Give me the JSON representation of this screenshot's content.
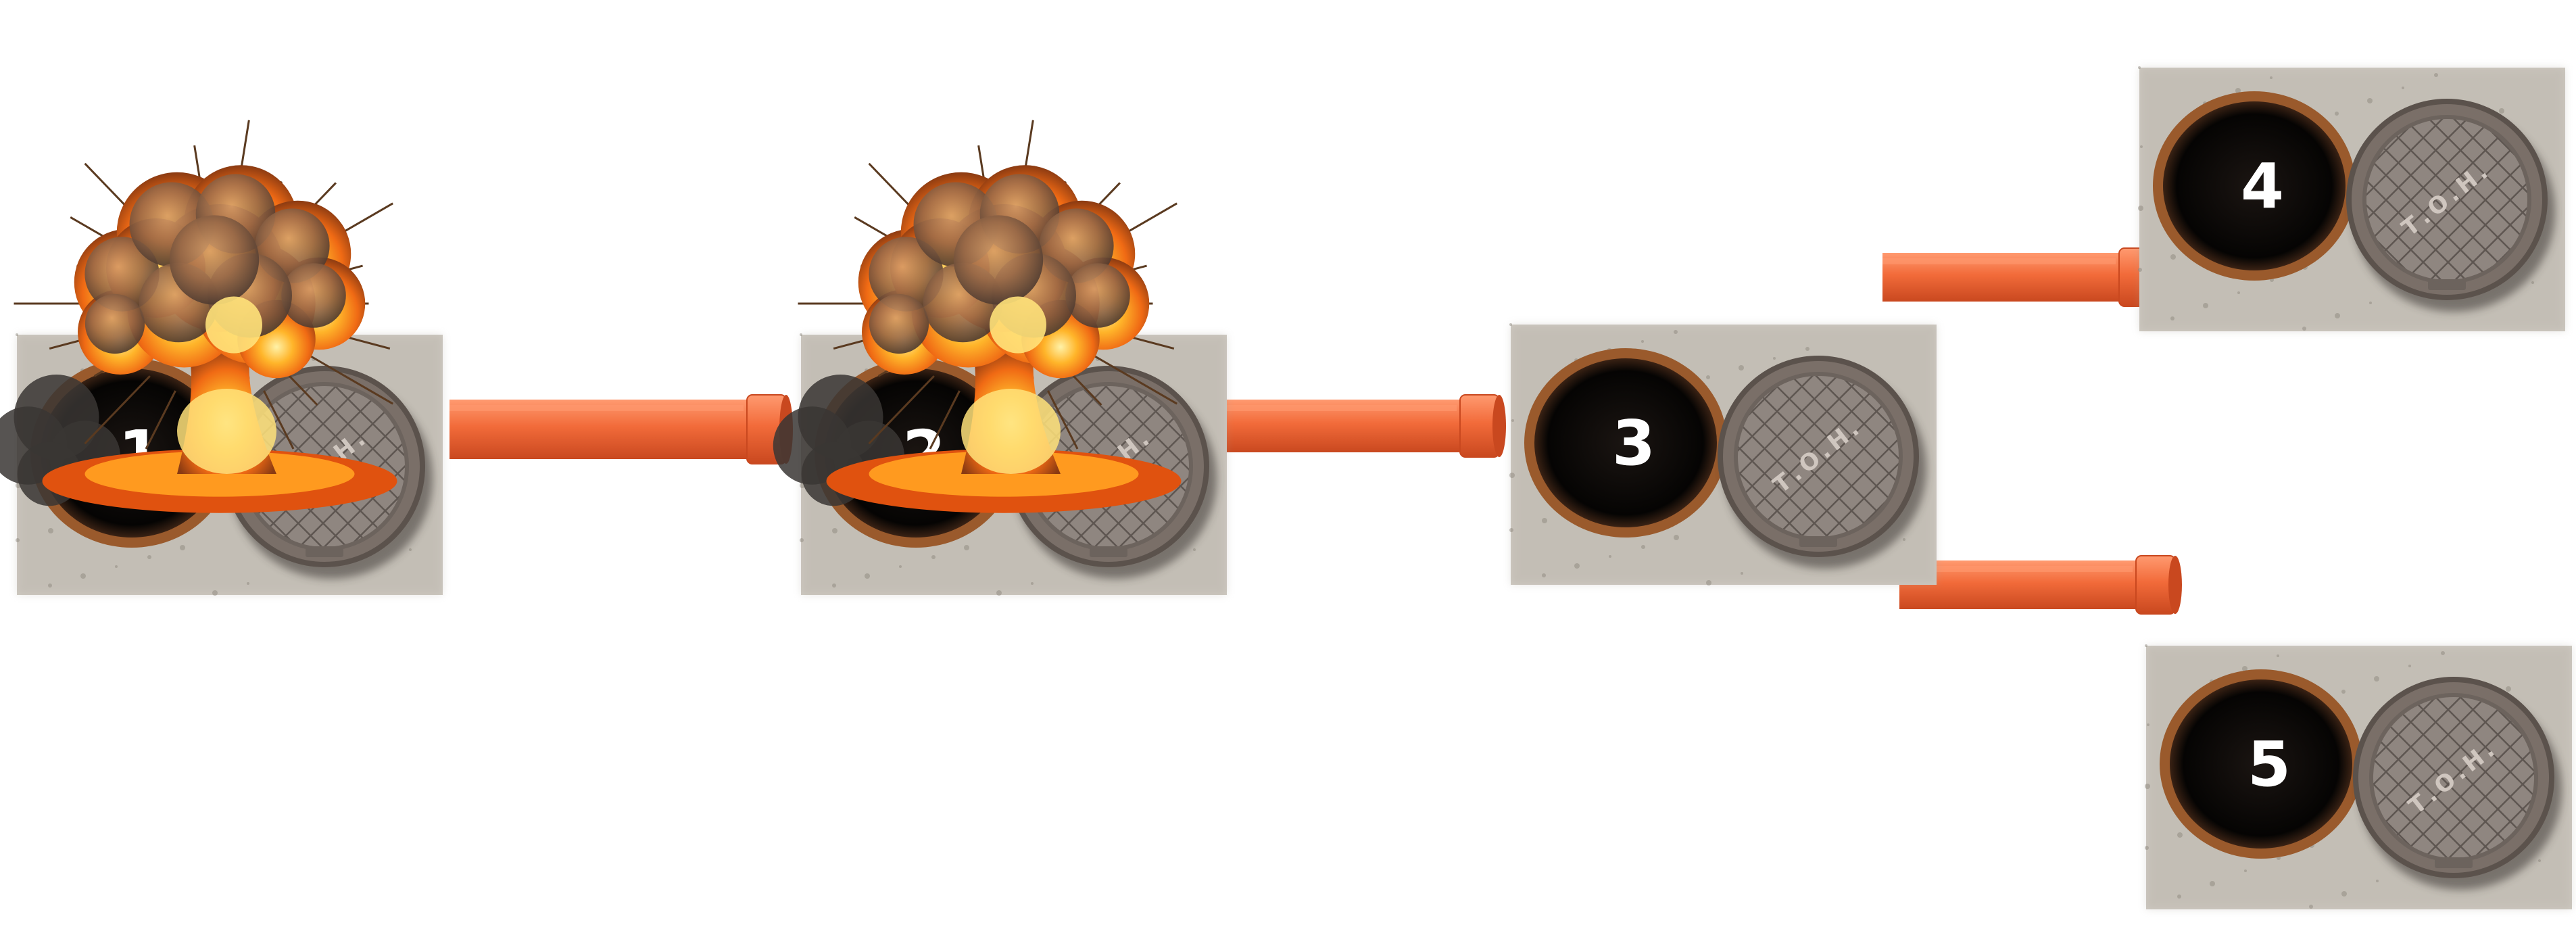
{
  "manholes": [
    {
      "id": "1",
      "label": "1",
      "exploded": true
    },
    {
      "id": "2",
      "label": "2",
      "exploded": true
    },
    {
      "id": "3",
      "label": "3",
      "exploded": false
    },
    {
      "id": "4",
      "label": "4",
      "exploded": false
    },
    {
      "id": "5",
      "label": "5",
      "exploded": false
    }
  ],
  "cover_text": "Т.О.Н.",
  "colors": {
    "pipe": "#f26b3a",
    "pipe_dark": "#c9481f",
    "pipe_light": "#ff9a70",
    "concrete": "#cfcac2",
    "cover": "#8f8680",
    "hole": "#0b0908",
    "rim": "#9a5a2c",
    "label": "#ffffff",
    "fire_core": "#ffe27a",
    "fire_mid": "#ff9a1f",
    "fire_outer": "#e0520f",
    "smoke": "#6a5446",
    "dark_smoke": "#3a3634"
  }
}
